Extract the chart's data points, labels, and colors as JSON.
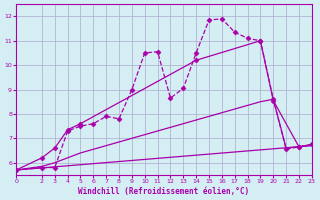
{
  "background_color": "#d4eef4",
  "grid_color": "#aaaacc",
  "line_color": "#aa00aa",
  "xlim": [
    0,
    23
  ],
  "ylim": [
    5.5,
    12.5
  ],
  "xticks": [
    0,
    2,
    3,
    4,
    5,
    6,
    7,
    8,
    9,
    10,
    11,
    12,
    13,
    14,
    15,
    16,
    17,
    18,
    19,
    20,
    21,
    22,
    23
  ],
  "yticks": [
    6,
    7,
    8,
    9,
    10,
    11,
    12
  ],
  "xlabel": "Windchill (Refroidissement éolien,°C)",
  "series": [
    {
      "x": [
        0,
        2,
        3,
        4,
        5,
        6,
        7,
        8,
        9,
        10,
        11,
        12,
        13,
        14,
        15,
        16,
        17,
        18,
        19,
        20,
        21,
        22,
        23
      ],
      "y": [
        5.7,
        5.8,
        5.8,
        7.3,
        7.5,
        7.6,
        7.9,
        7.8,
        9.0,
        10.5,
        10.55,
        8.65,
        9.05,
        10.5,
        11.85,
        11.9,
        11.35,
        11.1,
        11.0,
        8.6,
        6.55,
        6.65,
        6.75
      ],
      "marker": "D",
      "markersize": 2.5,
      "linewidth": 0.9,
      "linestyle": "--"
    },
    {
      "x": [
        0,
        2,
        3,
        4,
        5,
        14,
        19,
        20,
        22,
        23
      ],
      "y": [
        5.7,
        6.2,
        6.6,
        7.35,
        7.6,
        10.2,
        11.0,
        8.55,
        6.65,
        6.75
      ],
      "marker": "D",
      "markersize": 2.5,
      "linewidth": 0.9,
      "linestyle": "-"
    },
    {
      "x": [
        0,
        2,
        3,
        4,
        5,
        6,
        7,
        8,
        9,
        10,
        11,
        12,
        13,
        14,
        15,
        16,
        17,
        18,
        19,
        20,
        21,
        22,
        23
      ],
      "y": [
        5.7,
        5.85,
        6.0,
        6.2,
        6.4,
        6.55,
        6.7,
        6.85,
        7.0,
        7.15,
        7.3,
        7.45,
        7.6,
        7.75,
        7.9,
        8.05,
        8.2,
        8.35,
        8.5,
        8.6,
        6.6,
        6.65,
        6.72
      ],
      "marker": null,
      "markersize": 0,
      "linewidth": 0.9,
      "linestyle": "-"
    },
    {
      "x": [
        0,
        23
      ],
      "y": [
        5.7,
        6.7
      ],
      "marker": null,
      "markersize": 0,
      "linewidth": 0.9,
      "linestyle": "-"
    }
  ]
}
